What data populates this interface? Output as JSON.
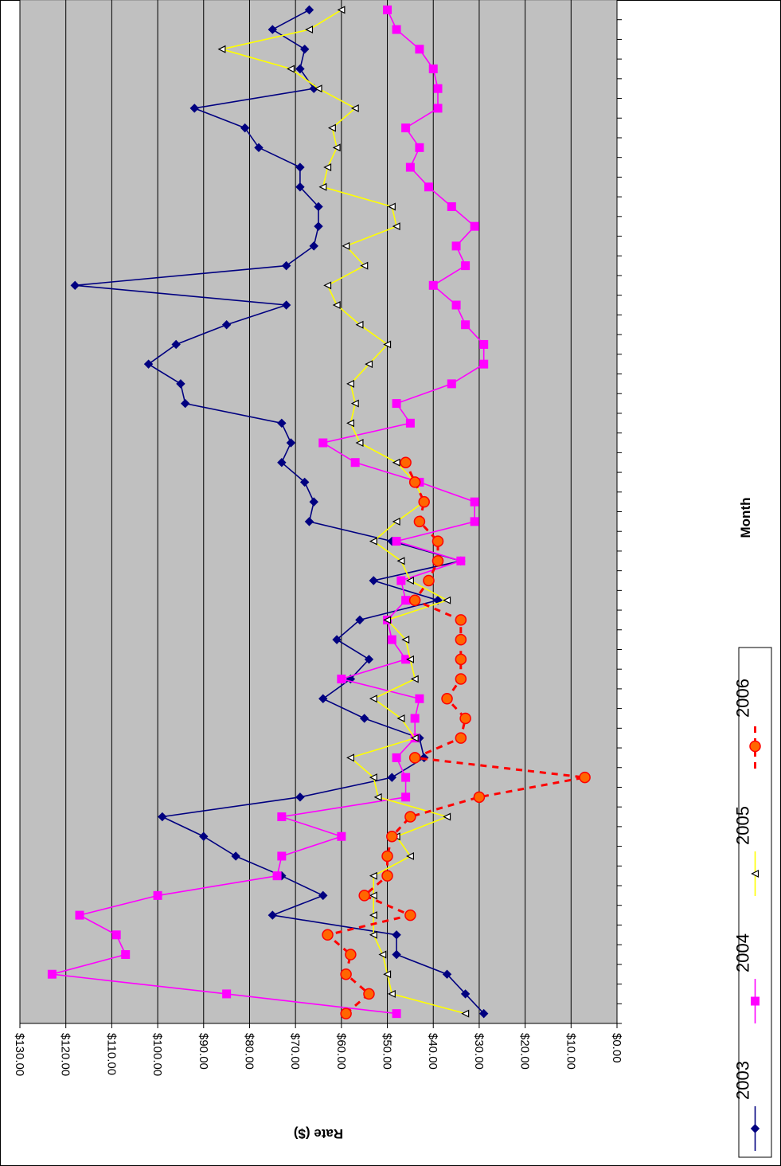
{
  "chart_data": {
    "type": "line",
    "orientation": "rotated-90-clockwise",
    "xlabel": "Month",
    "ylabel": "Rate ($)",
    "ylim": [
      0,
      130
    ],
    "y_ticks": [
      "$0.00",
      "$10.00",
      "$20.00",
      "$30.00",
      "$40.00",
      "$50.00",
      "$60.00",
      "$70.00",
      "$80.00",
      "$90.00",
      "$100.00",
      "$110.00",
      "$120.00",
      "$130.00"
    ],
    "grid": true,
    "plot_background": "#c0c0c0",
    "legend_position": "bottom",
    "x_count": 52,
    "series": [
      {
        "name": "2003",
        "color": "#000080",
        "marker": "diamond",
        "dash": "solid",
        "values": [
          29,
          33,
          37,
          48,
          48,
          75,
          64,
          73,
          83,
          90,
          99,
          69,
          49,
          42,
          43,
          55,
          64,
          58,
          54,
          61,
          56,
          39,
          53,
          34,
          49,
          67,
          66,
          68,
          73,
          71,
          73,
          94,
          95,
          102,
          96,
          85,
          72,
          118,
          72,
          66,
          65,
          65,
          69,
          69,
          78,
          81,
          92,
          66,
          69,
          68,
          75,
          67
        ]
      },
      {
        "name": "2004",
        "color": "#ff00ff",
        "marker": "square",
        "dash": "solid",
        "values": [
          48,
          85,
          123,
          107,
          109,
          117,
          100,
          74,
          73,
          60,
          73,
          46,
          46,
          48,
          44,
          44,
          43,
          60,
          46,
          49,
          50,
          46,
          47,
          34,
          48,
          31,
          31,
          43,
          57,
          64,
          45,
          48,
          36,
          29,
          29,
          33,
          35,
          40,
          33,
          35,
          31,
          36,
          41,
          45,
          43,
          46,
          39,
          39,
          40,
          43,
          48,
          50
        ]
      },
      {
        "name": "2005",
        "color": "#ffff00",
        "marker": "triangle",
        "dash": "solid",
        "values": [
          33,
          49,
          50,
          51,
          53,
          53,
          53,
          53,
          45,
          48,
          37,
          52,
          53,
          58,
          44,
          47,
          53,
          44,
          45,
          46,
          50,
          37,
          45,
          47,
          53,
          48,
          42,
          44,
          48,
          56,
          58,
          57,
          58,
          54,
          50,
          56,
          61,
          63,
          55,
          59,
          48,
          49,
          64,
          63,
          61,
          62,
          57,
          65,
          71,
          86,
          67,
          60
        ]
      },
      {
        "name": "2006",
        "color": "#ff0000",
        "marker": "circle",
        "dash": "dashed",
        "values": [
          59,
          54,
          59,
          58,
          63,
          45,
          55,
          50,
          50,
          49,
          45,
          30,
          7,
          44,
          34,
          33,
          37,
          34,
          34,
          34,
          34,
          44,
          41,
          39,
          39,
          43,
          42,
          44,
          46
        ]
      }
    ]
  }
}
